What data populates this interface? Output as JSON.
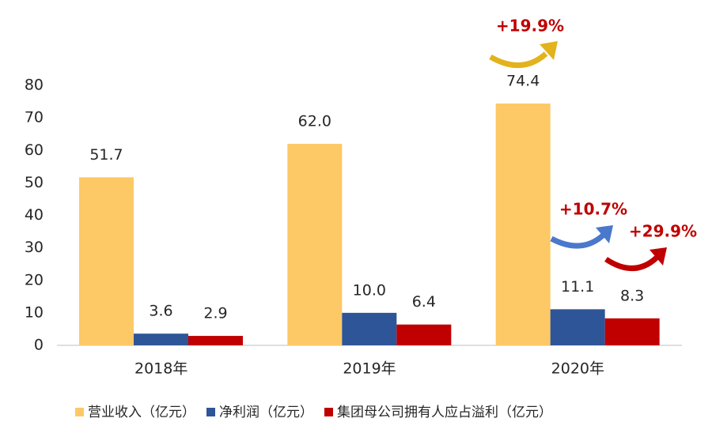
{
  "chart_data": {
    "type": "bar",
    "categories": [
      "2018年",
      "2019年",
      "2020年"
    ],
    "series": [
      {
        "name": "营业收入（亿元）",
        "color": "#fdc966",
        "values": [
          51.7,
          62.0,
          74.4
        ],
        "value_labels": [
          "51.7",
          "62.0",
          "74.4"
        ]
      },
      {
        "name": "净利润（亿元）",
        "color": "#2e5597",
        "values": [
          3.6,
          10.0,
          11.1
        ],
        "value_labels": [
          "3.6",
          "10.0",
          "11.1"
        ]
      },
      {
        "name": "集团母公司拥有人应占溢利（亿元）",
        "color": "#c00000",
        "values": [
          2.9,
          6.4,
          8.3
        ],
        "value_labels": [
          "2.9",
          "6.4",
          "8.3"
        ]
      }
    ],
    "ylim": [
      0,
      80
    ],
    "yticks": [
      0,
      10,
      20,
      30,
      40,
      50,
      60,
      70,
      80
    ],
    "grid": false,
    "legend": "bottom",
    "annotations": [
      {
        "text": "+19.9%"
      },
      {
        "text": "+10.7%"
      },
      {
        "text": "+29.9%"
      }
    ]
  }
}
